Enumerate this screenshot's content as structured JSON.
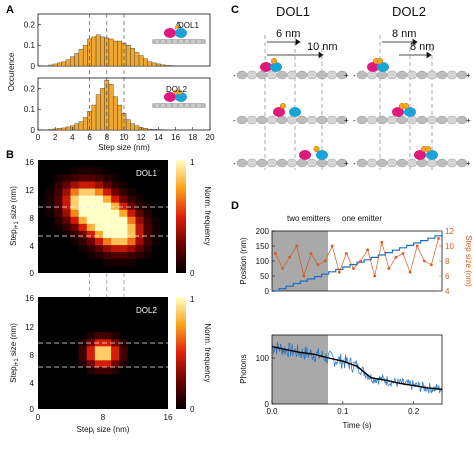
{
  "panels": {
    "A": "A",
    "B": "B",
    "C": "C",
    "D": "D"
  },
  "panelA": {
    "ylabel": "Occurence",
    "xlabel": "Step size (nm)",
    "labels": [
      "DOL1",
      "DOL2"
    ]
  },
  "panelB": {
    "labels": [
      "DOL1",
      "DOL2"
    ],
    "ylabel_top": "Step",
    "ylabel_top_sub": "i+1",
    "ylabel_top_tail": " size (nm)",
    "ylabel_bottom": "Step",
    "ylabel_bottom_sub": "i+1",
    "ylabel_bottom_tail": " size (nm)",
    "xlabel_main": "Step",
    "xlabel_sub": "i",
    "xlabel_tail": " size (nm)",
    "colorbar_label": "Norm. frequency",
    "colorbar_ticks": [
      "1",
      "0"
    ],
    "ticks": [
      "16",
      "12",
      "8",
      "4",
      "0"
    ],
    "xticks": [
      "0",
      "8",
      "16"
    ]
  },
  "panelC": {
    "titles": [
      "DOL1",
      "DOL2"
    ],
    "dol1_steps": [
      "6 nm",
      "10 nm"
    ],
    "dol2_steps": [
      "8 nm",
      "8 nm"
    ],
    "minus": "-",
    "plus": "+"
  },
  "panelD": {
    "region_labels": [
      "two emitters",
      "one emitter"
    ],
    "ylabel_top": "Position (nm)",
    "ylabel_bottom": "Photons",
    "ylabel_right": "Step size (nm)",
    "xlabel": "Time (s)"
  },
  "colors": {
    "bar": "#f0a830",
    "trace": "#1f6fc2",
    "steps": "#d95a1c",
    "fit": "#000000",
    "shade": "#a9a9a9"
  },
  "chart_data": [
    {
      "type": "bar",
      "title": "DOL1",
      "xlabel": "Step size (nm)",
      "ylabel": "Occurence",
      "x": [
        1,
        1.5,
        2,
        2.5,
        3,
        3.5,
        4,
        4.5,
        5,
        5.5,
        6,
        6.5,
        7,
        7.5,
        8,
        8.5,
        9,
        9.5,
        10,
        10.5,
        11,
        11.5,
        12,
        12.5,
        13,
        13.5,
        14,
        14.5,
        15,
        15.5,
        16
      ],
      "values": [
        0.0,
        0.005,
        0.01,
        0.015,
        0.02,
        0.03,
        0.045,
        0.06,
        0.08,
        0.1,
        0.13,
        0.14,
        0.15,
        0.14,
        0.135,
        0.13,
        0.12,
        0.12,
        0.11,
        0.1,
        0.085,
        0.065,
        0.05,
        0.035,
        0.02,
        0.015,
        0.01,
        0.006,
        0.004,
        0.002,
        0.001
      ],
      "xlim": [
        0,
        20
      ],
      "ylim": [
        0,
        0.25
      ],
      "yticks": [
        0,
        0.1,
        0.2
      ],
      "xticks": [
        0,
        2,
        4,
        6,
        8,
        10,
        12,
        14,
        16,
        18,
        20
      ]
    },
    {
      "type": "bar",
      "title": "DOL2",
      "xlabel": "Step size (nm)",
      "ylabel": "Occurence",
      "x": [
        1,
        1.5,
        2,
        2.5,
        3,
        3.5,
        4,
        4.5,
        5,
        5.5,
        6,
        6.5,
        7,
        7.5,
        8,
        8.5,
        9,
        9.5,
        10,
        10.5,
        11,
        11.5,
        12,
        12.5,
        13,
        13.5,
        14,
        14.5,
        15,
        15.5,
        16
      ],
      "values": [
        0.0,
        0.003,
        0.005,
        0.008,
        0.01,
        0.015,
        0.02,
        0.03,
        0.04,
        0.06,
        0.09,
        0.12,
        0.17,
        0.2,
        0.24,
        0.22,
        0.16,
        0.12,
        0.08,
        0.05,
        0.03,
        0.02,
        0.012,
        0.008,
        0.004,
        0.003,
        0.002,
        0.001,
        0.0,
        0.0,
        0.0
      ],
      "xlim": [
        0,
        20
      ],
      "ylim": [
        0,
        0.25
      ],
      "yticks": [
        0,
        0.1,
        0.2
      ],
      "xticks": [
        0,
        2,
        4,
        6,
        8,
        10,
        12,
        14,
        16,
        18,
        20
      ]
    },
    {
      "type": "heatmap",
      "title": "DOL1",
      "xlabel": "Step size (nm)",
      "ylabel": "Step size (nm)",
      "xlim": [
        0,
        16
      ],
      "ylim": [
        0,
        16
      ],
      "peaks": [
        {
          "x": 6,
          "y": 10,
          "amp": 1.0
        },
        {
          "x": 10,
          "y": 6,
          "amp": 0.95
        },
        {
          "x": 8,
          "y": 8,
          "amp": 0.8
        }
      ],
      "spread": 1.9
    },
    {
      "type": "heatmap",
      "title": "DOL2",
      "xlabel": "Step size (nm)",
      "ylabel": "Step size (nm)",
      "xlim": [
        0,
        16
      ],
      "ylim": [
        0,
        16
      ],
      "peaks": [
        {
          "x": 8,
          "y": 8,
          "amp": 1.0
        }
      ],
      "spread": 1.3
    },
    {
      "type": "line",
      "series": [
        {
          "name": "Position",
          "x": [
            0,
            0.01,
            0.02,
            0.03,
            0.04,
            0.05,
            0.06,
            0.07,
            0.08,
            0.09,
            0.1,
            0.11,
            0.12,
            0.13,
            0.14,
            0.15,
            0.16,
            0.17,
            0.18,
            0.19,
            0.2,
            0.21,
            0.22,
            0.23,
            0.24
          ],
          "values": [
            0,
            8,
            16,
            25,
            33,
            40,
            48,
            56,
            64,
            72,
            80,
            88,
            96,
            104,
            112,
            120,
            128,
            136,
            144,
            152,
            160,
            168,
            176,
            184,
            200
          ]
        },
        {
          "name": "Step size",
          "x": [
            0.005,
            0.015,
            0.025,
            0.035,
            0.045,
            0.055,
            0.065,
            0.075,
            0.085,
            0.095,
            0.105,
            0.115,
            0.125,
            0.135,
            0.145,
            0.155,
            0.165,
            0.175,
            0.185,
            0.195,
            0.205,
            0.215,
            0.225,
            0.235
          ],
          "values": [
            9,
            7,
            8.5,
            10,
            6,
            9,
            7.5,
            8,
            10,
            6.5,
            9,
            7,
            8,
            9.5,
            6,
            10.5,
            7,
            8.5,
            9,
            6.5,
            10,
            8,
            7.5,
            11
          ]
        }
      ],
      "xlim": [
        0,
        0.24
      ],
      "ylim": [
        0,
        200
      ],
      "y2lim": [
        4,
        12
      ],
      "yticks": [
        0,
        50,
        100,
        150,
        200
      ],
      "y2ticks": [
        4,
        6,
        8,
        10,
        12
      ]
    },
    {
      "type": "line",
      "series": [
        {
          "name": "Photons",
          "x": [
            0,
            0.02,
            0.04,
            0.06,
            0.08,
            0.1,
            0.12,
            0.14,
            0.16,
            0.18,
            0.2,
            0.22,
            0.24
          ],
          "values": [
            125,
            118,
            112,
            108,
            100,
            93,
            82,
            57,
            52,
            45,
            40,
            35,
            32
          ]
        }
      ],
      "xlim": [
        0,
        0.24
      ],
      "ylim": [
        0,
        150
      ],
      "yticks": [
        0,
        100
      ],
      "xticks": [
        0.0,
        0.1,
        0.2
      ]
    }
  ]
}
